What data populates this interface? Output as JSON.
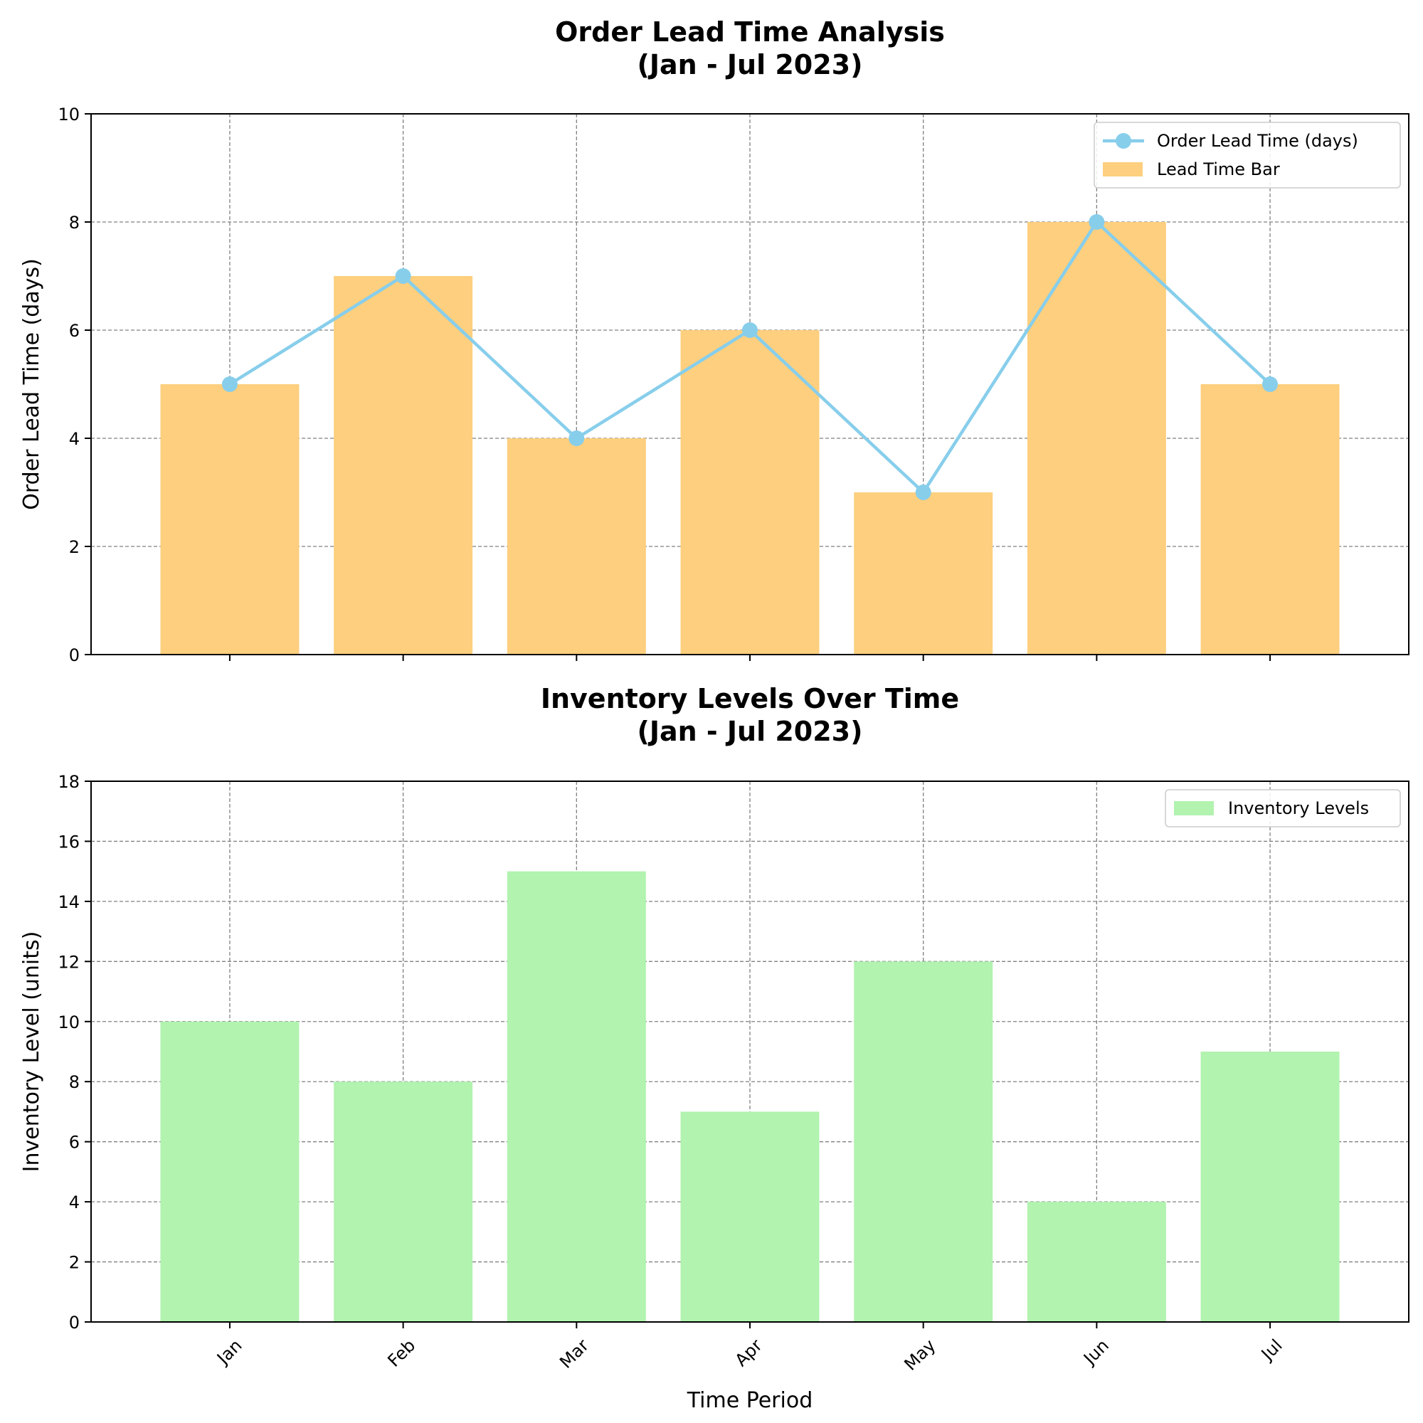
{
  "chart_data": [
    {
      "type": "bar",
      "title": "Order Lead Time Analysis\n(Jan - Jul 2023)",
      "xlabel": "",
      "ylabel": "Order Lead Time (days)",
      "ylim": [
        0,
        10
      ],
      "yticks": [
        0,
        2,
        4,
        6,
        8,
        10
      ],
      "grid": true,
      "legend_position": "top-right",
      "categories": [
        "Jan",
        "Feb",
        "Mar",
        "Apr",
        "May",
        "Jun",
        "Jul"
      ],
      "series": [
        {
          "name": "Order Lead Time (days)",
          "kind": "line",
          "color": "#87CEEB",
          "values": [
            5,
            7,
            4,
            6,
            3,
            8,
            5
          ]
        },
        {
          "name": "Lead Time Bar",
          "kind": "bar",
          "color": "#FDCF7E",
          "values": [
            5,
            7,
            4,
            6,
            3,
            8,
            5
          ]
        }
      ]
    },
    {
      "type": "bar",
      "title": "Inventory Levels Over Time\n(Jan - Jul 2023)",
      "xlabel": "Time Period",
      "ylabel": "Inventory Level (units)",
      "ylim": [
        0,
        18
      ],
      "yticks": [
        0,
        2,
        4,
        6,
        8,
        10,
        12,
        14,
        16,
        18
      ],
      "grid": true,
      "legend_position": "top-right",
      "categories": [
        "Jan",
        "Feb",
        "Mar",
        "Apr",
        "May",
        "Jun",
        "Jul"
      ],
      "series": [
        {
          "name": "Inventory Levels",
          "kind": "bar",
          "color": "#B1F3AF",
          "values": [
            10,
            8,
            15,
            7,
            12,
            4,
            9
          ]
        }
      ]
    }
  ]
}
